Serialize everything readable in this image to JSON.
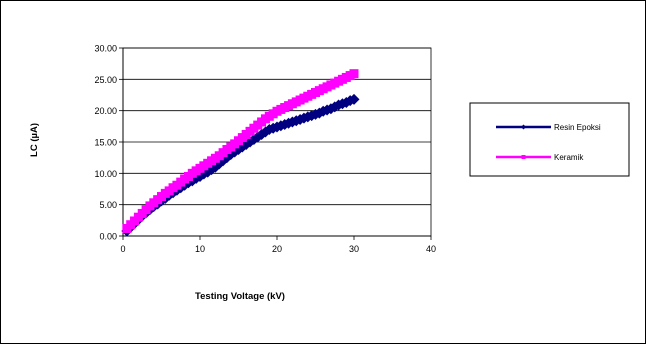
{
  "chart_data": {
    "type": "scatter",
    "title": "",
    "xlabel": "Testing Voltage (kV)",
    "ylabel": "LC (µA)",
    "xlim": [
      0,
      40
    ],
    "ylim": [
      0,
      30
    ],
    "x_ticks": [
      "0",
      "10",
      "20",
      "30",
      "40"
    ],
    "y_ticks": [
      "0.00",
      "5.00",
      "10.00",
      "15.00",
      "20.00",
      "25.00",
      "30.00"
    ],
    "grid": "horizontal",
    "legend_position": "right",
    "series": [
      {
        "name": "Resin Epoksi",
        "color": "#000080",
        "marker": "diamond",
        "x": [
          0.5,
          1,
          1.5,
          2,
          2.5,
          3,
          3.5,
          4,
          4.5,
          5,
          5.5,
          6,
          6.5,
          7,
          7.5,
          8,
          8.5,
          9,
          9.5,
          10,
          10.5,
          11,
          11.5,
          12,
          12.5,
          13,
          13.5,
          14,
          14.5,
          15,
          15.5,
          16,
          16.5,
          17,
          17.5,
          18,
          18.5,
          19,
          19.5,
          20,
          20.5,
          21,
          21.5,
          22,
          22.5,
          23,
          23.5,
          24,
          24.5,
          25,
          25.5,
          26,
          26.5,
          27,
          27.5,
          28,
          28.5,
          29,
          29.5,
          30
        ],
        "y": [
          0.8,
          1.4,
          2.0,
          2.6,
          3.2,
          3.7,
          4.2,
          4.7,
          5.1,
          5.6,
          6.0,
          6.5,
          6.9,
          7.3,
          7.7,
          8.1,
          8.5,
          8.8,
          9.2,
          9.5,
          9.9,
          10.2,
          10.6,
          11.0,
          11.5,
          12.0,
          12.5,
          13.0,
          13.4,
          13.8,
          14.2,
          14.6,
          15.0,
          15.4,
          15.8,
          16.2,
          16.6,
          17.0,
          17.2,
          17.4,
          17.6,
          17.8,
          18.0,
          18.2,
          18.4,
          18.6,
          18.8,
          19.0,
          19.2,
          19.4,
          19.6,
          19.9,
          20.1,
          20.3,
          20.6,
          20.9,
          21.1,
          21.3,
          21.6,
          21.8
        ]
      },
      {
        "name": "Keramik",
        "color": "#FF00FF",
        "marker": "square",
        "x": [
          0.5,
          1,
          1.5,
          2,
          2.5,
          3,
          3.5,
          4,
          4.5,
          5,
          5.5,
          6,
          6.5,
          7,
          7.5,
          8,
          8.5,
          9,
          9.5,
          10,
          10.5,
          11,
          11.5,
          12,
          12.5,
          13,
          13.5,
          14,
          14.5,
          15,
          15.5,
          16,
          16.5,
          17,
          17.5,
          18,
          18.5,
          19,
          19.5,
          20,
          20.5,
          21,
          21.5,
          22,
          22.5,
          23,
          23.5,
          24,
          24.5,
          25,
          25.5,
          26,
          26.5,
          27,
          27.5,
          28,
          28.5,
          29,
          29.5,
          30
        ],
        "y": [
          1.2,
          1.8,
          2.4,
          3.0,
          3.6,
          4.2,
          4.8,
          5.3,
          5.8,
          6.3,
          6.8,
          7.2,
          7.7,
          8.1,
          8.6,
          9.1,
          9.5,
          10.0,
          10.4,
          10.8,
          11.2,
          11.6,
          12.0,
          12.4,
          12.8,
          13.3,
          13.8,
          14.2,
          14.7,
          15.2,
          15.7,
          16.2,
          16.7,
          17.2,
          17.7,
          18.2,
          18.7,
          19.1,
          19.5,
          19.9,
          20.2,
          20.5,
          20.8,
          21.1,
          21.4,
          21.7,
          22.0,
          22.3,
          22.6,
          22.9,
          23.2,
          23.5,
          23.8,
          24.1,
          24.4,
          24.7,
          25.0,
          25.3,
          25.6,
          25.9
        ]
      }
    ]
  }
}
